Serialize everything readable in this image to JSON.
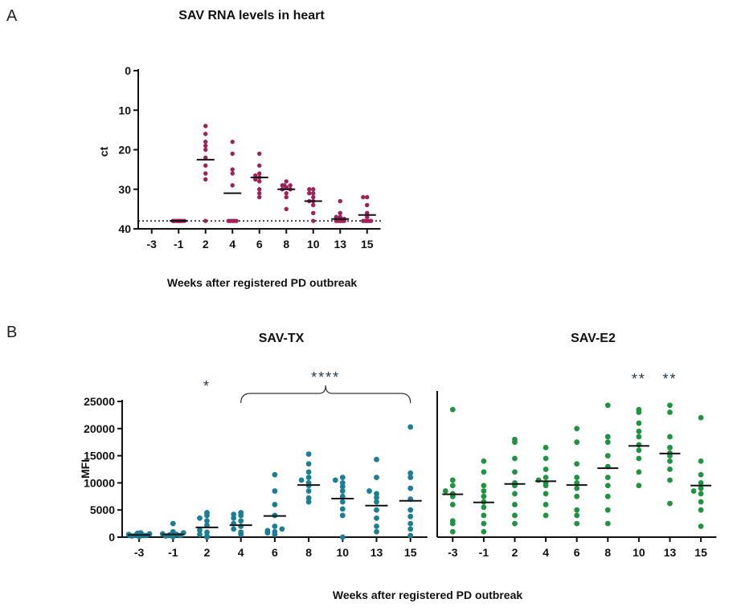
{
  "panels": {
    "a": "A",
    "b": "B"
  },
  "chart_data": [
    {
      "type": "scatter",
      "title": "SAV RNA levels in heart",
      "xlabel": "Weeks after registered PD outbreak",
      "ylabel": "ct",
      "categories": [
        "-3",
        "-1",
        "2",
        "4",
        "6",
        "8",
        "10",
        "13",
        "15"
      ],
      "y_inverted": true,
      "ylim": [
        0,
        40
      ],
      "yticks": [
        "0",
        "10",
        "20",
        "30",
        "40"
      ],
      "ytick_values": [
        0,
        10,
        20,
        30,
        40
      ],
      "detection_limit": 38,
      "grid": false,
      "color": "#a0205a",
      "points": [
        [],
        [
          38,
          38,
          38,
          38,
          38,
          38,
          38,
          38,
          38,
          38
        ],
        [
          14,
          16,
          18,
          19,
          20,
          22,
          24,
          26,
          27.5,
          38
        ],
        [
          18,
          21,
          25,
          26,
          29,
          38,
          38,
          38,
          38,
          38
        ],
        [
          21,
          24,
          26,
          26.5,
          27,
          27.5,
          28,
          30,
          31,
          32
        ],
        [
          28,
          29,
          29,
          29,
          29.5,
          30,
          30,
          31,
          32,
          35
        ],
        [
          30,
          30,
          31,
          31,
          32,
          33,
          33,
          34,
          36,
          38
        ],
        [
          33,
          36,
          37,
          37,
          37.5,
          38,
          38,
          38,
          38,
          38
        ],
        [
          32,
          32,
          34,
          36,
          37,
          38,
          38,
          38,
          38,
          38
        ]
      ],
      "medians": [
        null,
        38,
        22.5,
        31,
        27,
        30,
        33,
        37.5,
        36.5
      ]
    },
    {
      "type": "scatter",
      "title": "SAV-TX",
      "xlabel": "Weeks after registered PD outbreak",
      "ylabel": "MFI",
      "categories": [
        "-3",
        "-1",
        "2",
        "4",
        "6",
        "8",
        "10",
        "13",
        "15"
      ],
      "ylim": [
        0,
        25000
      ],
      "yticks": [
        "0",
        "5000",
        "10000",
        "15000",
        "20000",
        "25000"
      ],
      "ytick_values": [
        0,
        5000,
        10000,
        15000,
        20000,
        25000
      ],
      "grid": false,
      "color": "#1a7f96",
      "points": [
        [
          100,
          200,
          300,
          350,
          400,
          500,
          600,
          700,
          800,
          300
        ],
        [
          100,
          200,
          300,
          400,
          500,
          600,
          800,
          1000,
          2500,
          500
        ],
        [
          0,
          200,
          500,
          900,
          1300,
          2200,
          3000,
          3500,
          4000,
          4500
        ],
        [
          500,
          900,
          1500,
          2000,
          2500,
          3000,
          3500,
          4000,
          4200,
          4500
        ],
        [
          500,
          800,
          1000,
          1200,
          1500,
          2000,
          4000,
          6000,
          8500,
          11500
        ],
        [
          6500,
          7200,
          8500,
          9500,
          10000,
          10500,
          11000,
          12000,
          13500,
          15300
        ],
        [
          0,
          4000,
          5200,
          6500,
          7500,
          8500,
          9300,
          10000,
          10500,
          11000
        ],
        [
          1000,
          2000,
          3500,
          5000,
          6500,
          7300,
          8000,
          8500,
          11000,
          14300
        ],
        [
          300,
          1500,
          2500,
          3800,
          5000,
          7000,
          9000,
          11000,
          11800,
          20300
        ]
      ],
      "medians": [
        400,
        500,
        1800,
        2200,
        3900,
        9600,
        7100,
        5800,
        6700
      ],
      "annotations": [
        {
          "text": "*",
          "category": "2"
        },
        {
          "text": "****",
          "from": "4",
          "to": "15"
        }
      ]
    },
    {
      "type": "scatter",
      "title": "SAV-E2",
      "xlabel": "Weeks after registered PD outbreak",
      "ylabel": "",
      "categories": [
        "-3",
        "-1",
        "2",
        "4",
        "6",
        "8",
        "10",
        "13",
        "15"
      ],
      "ylim": [
        0,
        25000
      ],
      "grid": false,
      "color": "#1e9441",
      "points": [
        [
          1000,
          3000,
          6000,
          7500,
          8000,
          8500,
          9500,
          10500,
          23500,
          2500
        ],
        [
          1000,
          2500,
          4000,
          5500,
          6500,
          7500,
          8500,
          9500,
          12000,
          14000
        ],
        [
          2500,
          4000,
          6000,
          8000,
          9500,
          10000,
          12000,
          14500,
          17500,
          18000
        ],
        [
          4000,
          6000,
          8000,
          9500,
          10000,
          10500,
          11000,
          12500,
          14500,
          16500
        ],
        [
          4000,
          5000,
          7500,
          9000,
          10000,
          11000,
          13500,
          17500,
          20000,
          2500
        ],
        [
          2500,
          5000,
          7500,
          9500,
          11000,
          13000,
          15000,
          17500,
          18500,
          24300
        ],
        [
          9500,
          12000,
          14500,
          16000,
          17000,
          18500,
          19500,
          21000,
          23000,
          23500
        ],
        [
          6200,
          10500,
          12500,
          14000,
          15500,
          16500,
          18500,
          23000,
          24300,
          15000
        ],
        [
          2000,
          5000,
          6500,
          8000,
          9000,
          10000,
          11500,
          14000,
          22000,
          8500
        ]
      ],
      "medians": [
        7900,
        6400,
        9800,
        10300,
        9600,
        12700,
        16800,
        15400,
        9500
      ],
      "annotations": [
        {
          "text": "**",
          "category": "10"
        },
        {
          "text": "**",
          "category": "13"
        }
      ]
    }
  ]
}
